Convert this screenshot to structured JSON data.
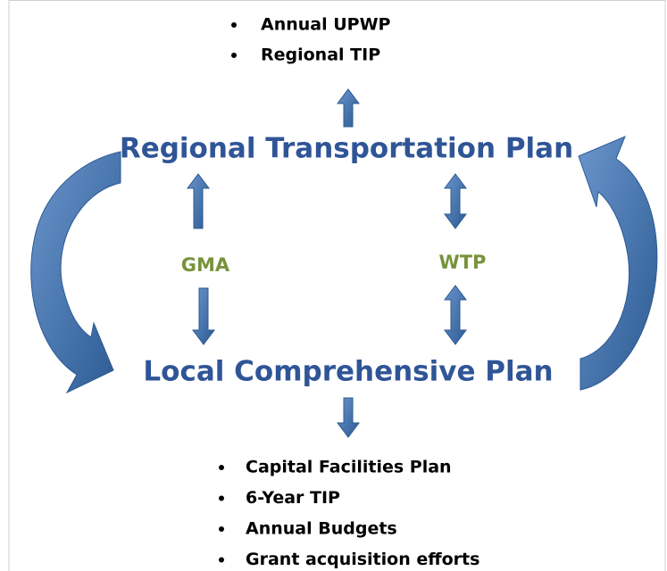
{
  "top_list": [
    "Annual UPWP",
    "Regional TIP"
  ],
  "upper_plan": "Regional Transportation Plan",
  "left_label": "GMA",
  "right_label": "WTP",
  "lower_plan": "Local Comprehensive Plan",
  "bottom_list": [
    "Capital Facilities Plan",
    "6-Year TIP",
    "Annual Budgets",
    "Grant acquisition efforts"
  ]
}
